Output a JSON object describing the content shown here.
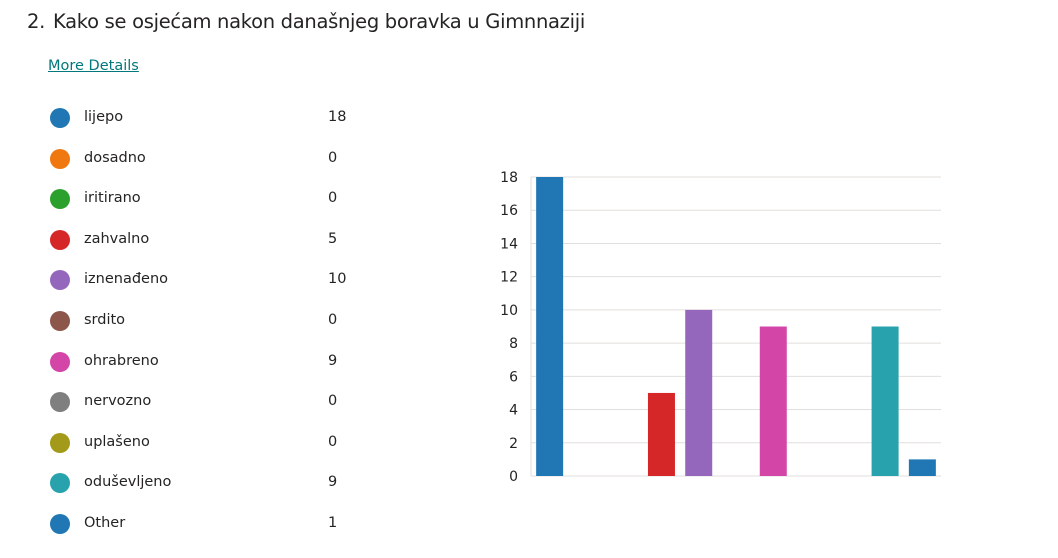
{
  "question": {
    "number": "2.",
    "title": "Kako se osjećam nakon današnjeg boravka u Gimnnaziji"
  },
  "more_details_label": "More Details",
  "legend": [
    {
      "label": "lijepo",
      "count": "18",
      "color": "#2077b4"
    },
    {
      "label": "dosadno",
      "count": "0",
      "color": "#f07810"
    },
    {
      "label": "iritirano",
      "count": "0",
      "color": "#2ca02c"
    },
    {
      "label": "zahvalno",
      "count": "5",
      "color": "#d62728"
    },
    {
      "label": "iznenađeno",
      "count": "10",
      "color": "#9467bd"
    },
    {
      "label": "srdito",
      "count": "0",
      "color": "#8c564b"
    },
    {
      "label": "ohrabreno",
      "count": "9",
      "color": "#d346a8"
    },
    {
      "label": "nervozno",
      "count": "0",
      "color": "#7f7f7f"
    },
    {
      "label": "uplašeno",
      "count": "0",
      "color": "#a39a1a"
    },
    {
      "label": "oduševljeno",
      "count": "9",
      "color": "#28a3ad"
    },
    {
      "label": "Other",
      "count": "1",
      "color": "#2077b4"
    }
  ],
  "chart_data": {
    "type": "bar",
    "categories": [
      "lijepo",
      "dosadno",
      "iritirano",
      "zahvalno",
      "iznenađeno",
      "srdito",
      "ohrabreno",
      "nervozno",
      "uplašeno",
      "oduševljeno",
      "Other"
    ],
    "values": [
      18,
      0,
      0,
      5,
      10,
      0,
      9,
      0,
      0,
      9,
      1
    ],
    "colors": [
      "#2077b4",
      "#f07810",
      "#2ca02c",
      "#d62728",
      "#9467bd",
      "#8c564b",
      "#d346a8",
      "#7f7f7f",
      "#a39a1a",
      "#28a3ad",
      "#2077b4"
    ],
    "ylim": [
      0,
      18
    ],
    "yticks": [
      0,
      2,
      4,
      6,
      8,
      10,
      12,
      14,
      16,
      18
    ],
    "grid": true,
    "title": "",
    "xlabel": "",
    "ylabel": ""
  }
}
